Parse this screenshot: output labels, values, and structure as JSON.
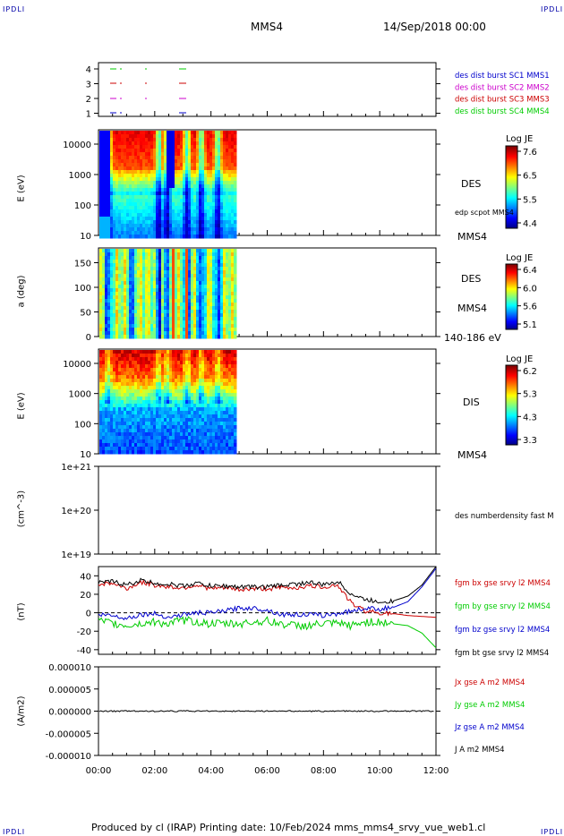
{
  "header": {
    "corner_tl": "IPDLI",
    "corner_tr": "IPDLI",
    "corner_bl": "IPDLI",
    "corner_br": "IPDLI",
    "spacecraft": "MMS4",
    "datetime": "14/Sep/2018 00:00"
  },
  "footer": "Produced by cl (IRAP)   Printing date: 10/Feb/2024   mms_mms4_srvy_vue_web1.cl",
  "colors": {
    "blue": "#0000cc",
    "magenta": "#cc00cc",
    "red": "#cc0000",
    "green": "#00cc00",
    "black": "#000000"
  },
  "chart_data": [
    {
      "type": "scatter",
      "panel": "burst",
      "yticks": [
        "4",
        "3",
        "2",
        "1"
      ],
      "legend": [
        {
          "text": "des dist burst SC1 MMS1",
          "color": "#0000cc"
        },
        {
          "text": "des dist burst SC2 MMS2",
          "color": "#cc00cc"
        },
        {
          "text": "des dist burst SC3 MMS3",
          "color": "#cc0000"
        },
        {
          "text": "des dist burst SC4 MMS4",
          "color": "#00cc00"
        }
      ]
    },
    {
      "type": "heatmap",
      "panel": "des_energy",
      "ylabel": "E (eV)",
      "yticks": [
        "10000",
        "1000",
        "100",
        "10"
      ],
      "ylog": true,
      "ylim": [
        10,
        25000
      ],
      "labels": [
        "DES",
        "edp scpot MMS4",
        "MMS4"
      ],
      "colorbar": {
        "title": "Log JE",
        "ticks": [
          "7.6",
          "6.5",
          "5.5",
          "4.4"
        ]
      }
    },
    {
      "type": "heatmap",
      "panel": "des_pitch",
      "ylabel": "a (deg)",
      "yticks": [
        "150",
        "100",
        "50",
        "0"
      ],
      "ylim": [
        0,
        180
      ],
      "labels": [
        "DES",
        "MMS4",
        "140-186 eV"
      ],
      "colorbar": {
        "title": "Log JE",
        "ticks": [
          "6.4",
          "6.0",
          "5.6",
          "5.1"
        ]
      }
    },
    {
      "type": "heatmap",
      "panel": "dis_energy",
      "ylabel": "E (eV)",
      "yticks": [
        "10000",
        "1000",
        "100",
        "10"
      ],
      "ylog": true,
      "ylim": [
        10,
        25000
      ],
      "labels": [
        "DIS",
        "MMS4"
      ],
      "colorbar": {
        "title": "Log JE",
        "ticks": [
          "6.2",
          "5.3",
          "4.3",
          "3.3"
        ]
      }
    },
    {
      "type": "line",
      "panel": "density",
      "ylabel": "(cm^-3)",
      "yticks": [
        "1e+21",
        "1e+20",
        "1e+19"
      ],
      "ylog": true,
      "legend": [
        {
          "text": "des numberdensity fast M",
          "color": "#000000"
        }
      ]
    },
    {
      "type": "line",
      "panel": "fgm",
      "ylabel": "(nT)",
      "yticks": [
        "40",
        "20",
        "0",
        "-20",
        "-40"
      ],
      "ylim": [
        -45,
        50
      ],
      "legend": [
        {
          "text": "fgm bx gse srvy l2 MMS4",
          "color": "#cc0000"
        },
        {
          "text": "fgm by gse srvy l2 MMS4",
          "color": "#00cc00"
        },
        {
          "text": "fgm bz gse srvy l2 MMS4",
          "color": "#0000cc"
        },
        {
          "text": "fgm bt gse srvy l2 MMS4",
          "color": "#000000"
        }
      ],
      "x_hours": [
        0,
        0.5,
        1,
        1.5,
        2,
        2.5,
        3,
        3.5,
        4,
        4.5,
        5,
        5.5,
        6,
        6.5,
        7,
        7.5,
        8,
        8.5,
        9,
        9.5,
        10,
        10.5,
        11,
        11.5,
        12
      ],
      "series": [
        {
          "color": "#cc0000",
          "values": [
            31,
            32,
            26,
            33,
            30,
            28,
            27,
            30,
            26,
            27,
            25,
            26,
            26,
            27,
            27,
            29,
            28,
            30,
            10,
            2,
            0,
            -1,
            -3,
            -4,
            -5
          ]
        },
        {
          "color": "#00cc00",
          "values": [
            -9,
            -12,
            -14,
            -12,
            -10,
            -12,
            -8,
            -10,
            -12,
            -12,
            -12,
            -10,
            -9,
            -12,
            -14,
            -14,
            -12,
            -12,
            -14,
            -10,
            -10,
            -12,
            -14,
            -22,
            -38
          ]
        },
        {
          "color": "#0000cc",
          "values": [
            -2,
            -3,
            -6,
            -2,
            -1,
            -5,
            -2,
            0,
            0,
            2,
            5,
            5,
            3,
            -2,
            -2,
            -2,
            -3,
            -1,
            2,
            5,
            4,
            6,
            12,
            28,
            48
          ]
        },
        {
          "color": "#000000",
          "values": [
            32,
            34,
            30,
            35,
            32,
            31,
            29,
            32,
            29,
            29,
            28,
            28,
            28,
            30,
            31,
            33,
            30,
            34,
            20,
            14,
            12,
            13,
            18,
            30,
            50
          ]
        }
      ]
    },
    {
      "type": "line",
      "panel": "current",
      "ylabel": "(A/m2)",
      "yticks": [
        "0.000010",
        "0.000005",
        "0.000000",
        "-0.000005",
        "-0.000010"
      ],
      "ylim": [
        -1e-05,
        1e-05
      ],
      "legend": [
        {
          "text": "Jx gse A m2 MMS4",
          "color": "#cc0000"
        },
        {
          "text": "Jy gse A m2 MMS4",
          "color": "#00cc00"
        },
        {
          "text": "Jz gse A m2 MMS4",
          "color": "#0000cc"
        },
        {
          "text": "J A m2 MMS4",
          "color": "#000000"
        }
      ]
    }
  ],
  "xaxis": {
    "ticks": [
      "00:00",
      "02:00",
      "04:00",
      "06:00",
      "08:00",
      "10:00",
      "12:00"
    ],
    "xlim": [
      0,
      12
    ]
  }
}
